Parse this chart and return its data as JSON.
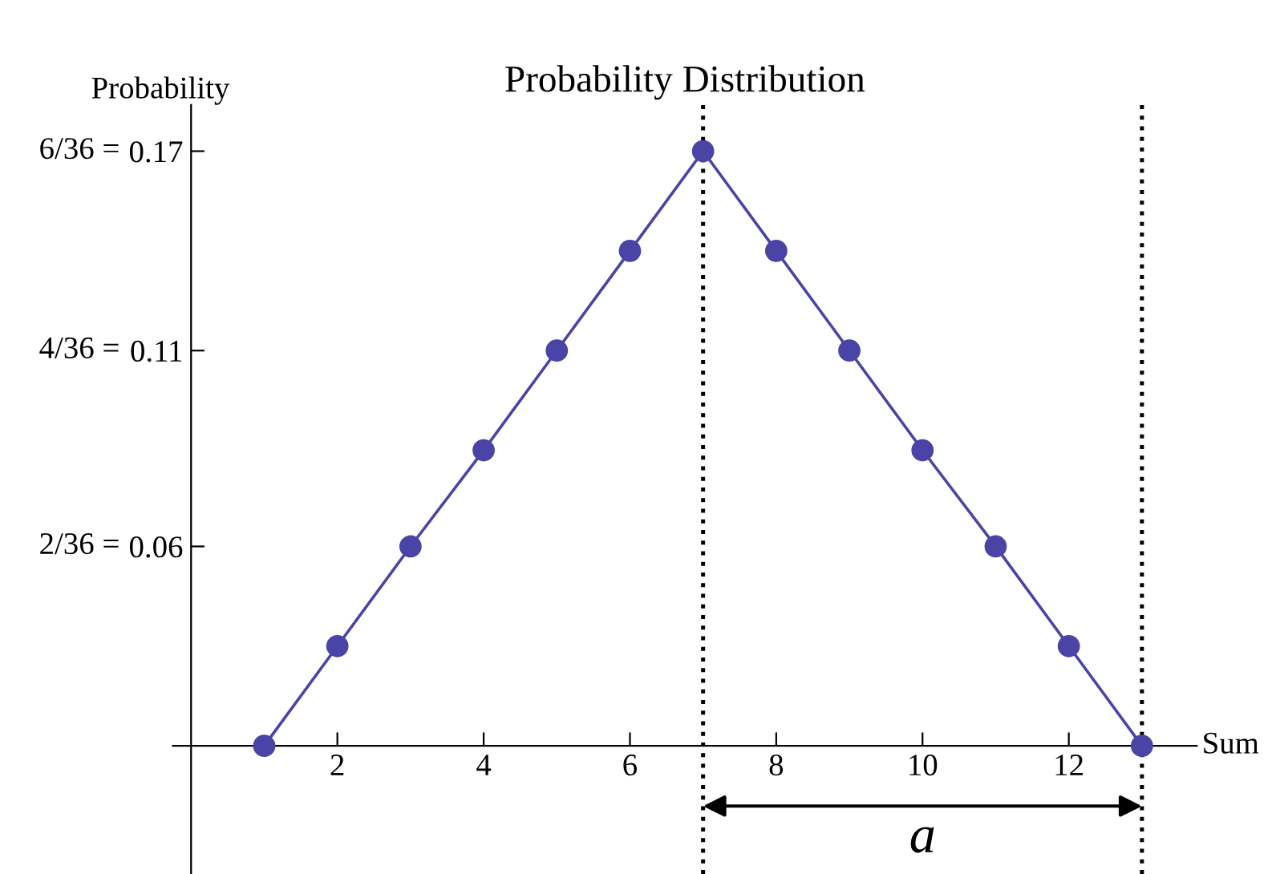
{
  "chart_data": {
    "type": "line",
    "title": "Probability Distribution",
    "xlabel": "Sum",
    "ylabel": "Probability",
    "x": [
      1,
      2,
      3,
      4,
      5,
      6,
      7,
      8,
      9,
      10,
      11,
      12,
      13
    ],
    "series": [
      {
        "color": "#4a44a6",
        "values": [
          0,
          0.028,
          0.056,
          0.083,
          0.111,
          0.139,
          0.167,
          0.139,
          0.111,
          0.083,
          0.056,
          0.028,
          0
        ]
      }
    ],
    "marker": "circle",
    "line_style": "solid",
    "grid": false,
    "legend": false,
    "xlim": [
      -0.25,
      13.75
    ],
    "ylim": [
      -0.036,
      0.18
    ],
    "xticks": [
      2,
      4,
      6,
      8,
      10,
      12
    ],
    "yticks": [
      {
        "value": 0.056,
        "label": "0.06"
      },
      {
        "value": 0.111,
        "label": "0.11"
      },
      {
        "value": 0.167,
        "label": "0.17"
      }
    ],
    "ref_lines": [
      {
        "axis": "x",
        "value": 7,
        "color": "#000000",
        "line_style": "dotted"
      },
      {
        "axis": "x",
        "value": 13,
        "color": "#000000",
        "line_style": "dotted"
      }
    ],
    "annotations": [
      "a",
      "2/36 =",
      "4/36 =",
      "6/36 ="
    ]
  }
}
